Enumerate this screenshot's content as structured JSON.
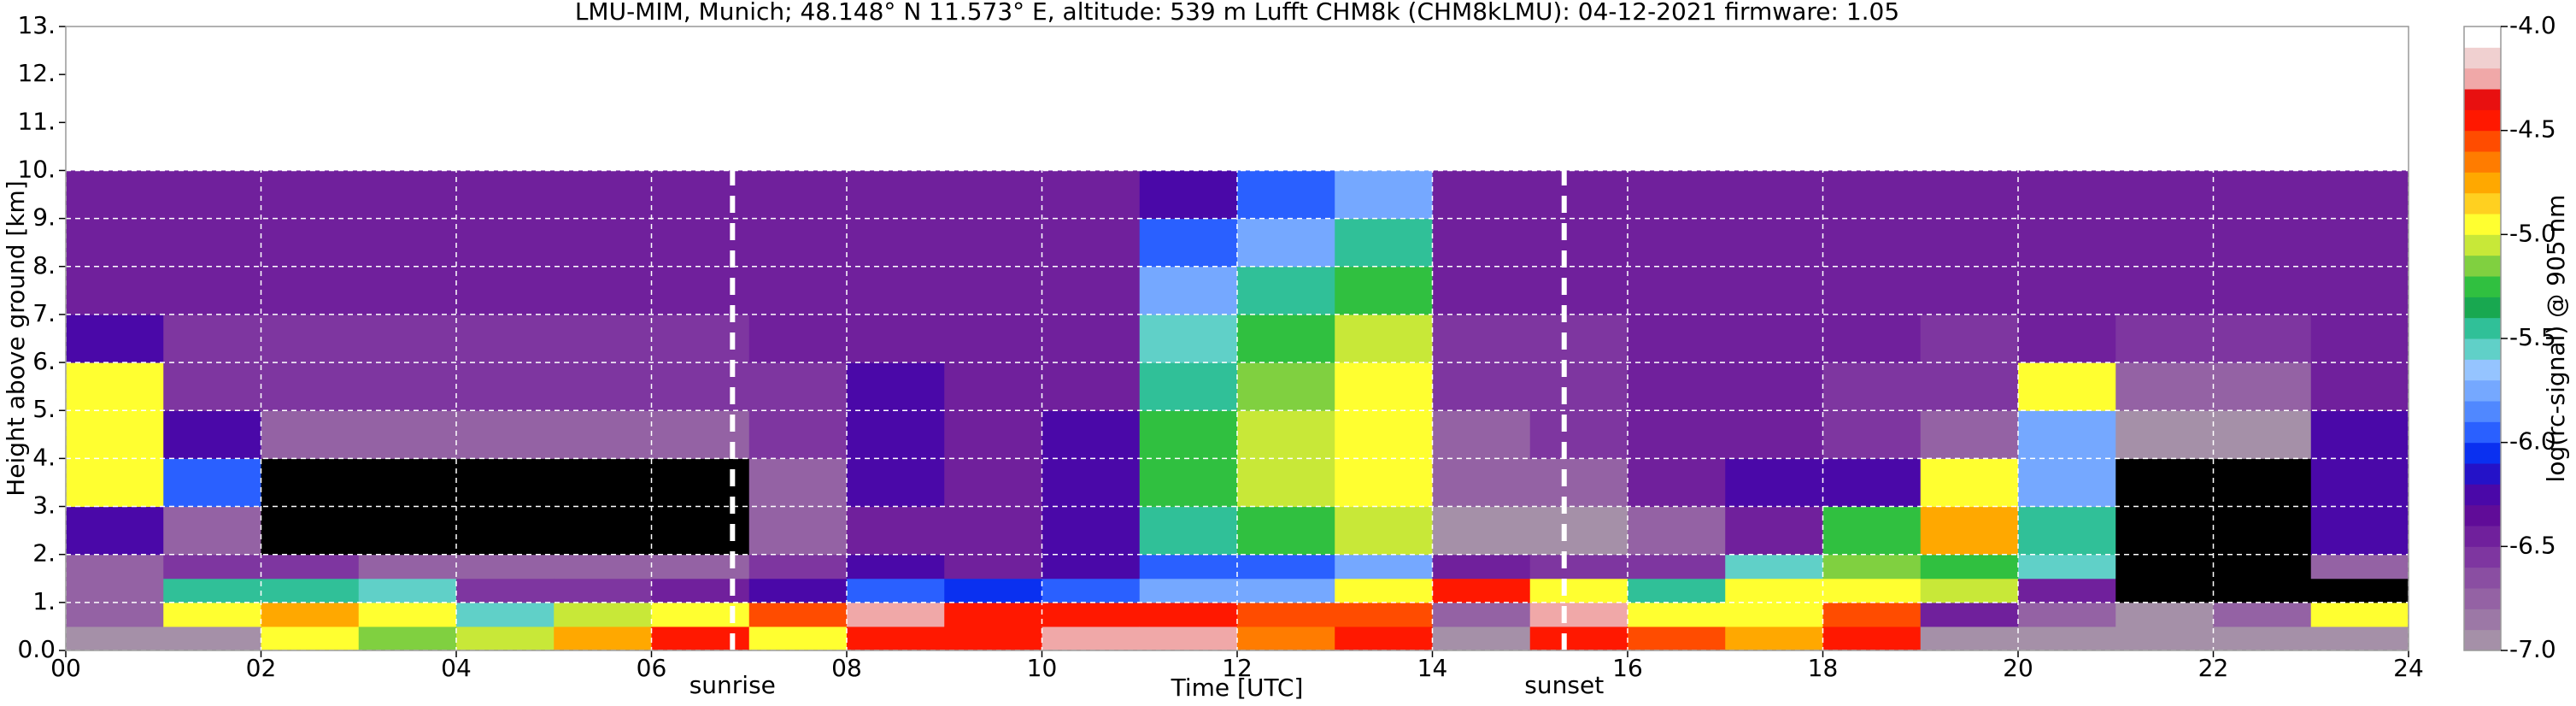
{
  "chart_data": {
    "type": "heatmap",
    "title": "LMU-MIM, Munich; 48.148° N 11.573° E, altitude: 539 m    Lufft CHM8k (CHM8kLMU): 04-12-2021    firmware: 1.05",
    "xlabel": "Time [UTC]",
    "ylabel": "Height above ground [km]",
    "xlim": [
      0,
      24
    ],
    "ylim": [
      0,
      13
    ],
    "xticks": [
      {
        "value": 0,
        "label": "00"
      },
      {
        "value": 2,
        "label": "02"
      },
      {
        "value": 4,
        "label": "04"
      },
      {
        "value": 6,
        "label": "06"
      },
      {
        "value": 8,
        "label": "08"
      },
      10,
      12,
      14,
      16,
      18,
      20,
      22,
      24
    ],
    "yticks": [
      {
        "value": 0,
        "label": "0.0"
      },
      {
        "value": 1,
        "label": "1."
      },
      {
        "value": 2,
        "label": "2."
      },
      {
        "value": 3,
        "label": "3."
      },
      {
        "value": 4,
        "label": "4."
      },
      {
        "value": 5,
        "label": "5."
      },
      {
        "value": 6,
        "label": "6."
      },
      {
        "value": 7,
        "label": "7."
      },
      {
        "value": 8,
        "label": "8."
      },
      {
        "value": 9,
        "label": "9."
      },
      {
        "value": 10,
        "label": "10."
      },
      {
        "value": 11,
        "label": "11."
      },
      {
        "value": 12,
        "label": "12."
      },
      {
        "value": 13,
        "label": "13."
      }
    ],
    "grid": true,
    "annotations": [
      {
        "text": "sunrise",
        "x": 6.83
      },
      {
        "text": "sunset",
        "x": 15.35
      }
    ],
    "x_edges": [
      0,
      1,
      2,
      3,
      4,
      5,
      6,
      7,
      8,
      9,
      10,
      11,
      12,
      13,
      14,
      15,
      16,
      17,
      18,
      19,
      20,
      21,
      22,
      23,
      24
    ],
    "y_edges": [
      0,
      0.5,
      1,
      1.5,
      2,
      3,
      4,
      5,
      6,
      7,
      8,
      9,
      10
    ],
    "z": [
      [
        -6.9,
        -6.8,
        -6.7,
        -6.7,
        -6.2,
        -5.0,
        -5.0,
        -4.9,
        -6.3,
        -6.5,
        -6.5,
        -6.5
      ],
      [
        -6.9,
        -5.0,
        -5.5,
        -6.6,
        -6.8,
        -6.0,
        -6.3,
        -6.6,
        -6.6,
        -6.5,
        -6.5,
        -6.5
      ],
      [
        -5.0,
        -4.8,
        -5.5,
        -6.6,
        -7.2,
        -7.2,
        -6.7,
        -6.6,
        -6.6,
        -6.5,
        -6.5,
        -6.5
      ],
      [
        -5.2,
        -5.0,
        -5.6,
        -6.7,
        -7.2,
        -7.2,
        -6.7,
        -6.6,
        -6.6,
        -6.5,
        -6.5,
        -6.5
      ],
      [
        -5.1,
        -5.6,
        -6.6,
        -6.8,
        -7.2,
        -7.2,
        -6.7,
        -6.6,
        -6.6,
        -6.5,
        -6.5,
        -6.5
      ],
      [
        -4.8,
        -5.1,
        -6.6,
        -6.8,
        -7.2,
        -7.2,
        -6.7,
        -6.6,
        -6.6,
        -6.5,
        -6.5,
        -6.5
      ],
      [
        -4.5,
        -5.0,
        -6.4,
        -6.7,
        -7.1,
        -7.2,
        -6.7,
        -6.6,
        -6.6,
        -6.5,
        -6.5,
        -6.5
      ],
      [
        -4.9,
        -4.6,
        -6.2,
        -6.6,
        -6.8,
        -6.7,
        -6.6,
        -6.6,
        -6.5,
        -6.5,
        -6.5,
        -6.5
      ],
      [
        -4.5,
        -4.3,
        -5.9,
        -6.3,
        -6.4,
        -6.3,
        -6.3,
        -6.3,
        -6.4,
        -6.4,
        -6.4,
        -6.4
      ],
      [
        -4.4,
        -4.4,
        -6.1,
        -6.4,
        -6.5,
        -6.5,
        -6.5,
        -6.5,
        -6.5,
        -6.5,
        -6.5,
        -6.5
      ],
      [
        -4.3,
        -4.5,
        -6.0,
        -6.2,
        -6.2,
        -6.2,
        -6.3,
        -6.4,
        -6.4,
        -6.4,
        -6.5,
        -6.5
      ],
      [
        -4.3,
        -4.4,
        -5.8,
        -5.9,
        -5.4,
        -5.3,
        -5.3,
        -5.4,
        -5.6,
        -5.8,
        -6.0,
        -6.2
      ],
      [
        -4.7,
        -4.6,
        -5.8,
        -6.0,
        -5.3,
        -5.1,
        -5.1,
        -5.2,
        -5.3,
        -5.5,
        -5.7,
        -6.0
      ],
      [
        -4.5,
        -4.6,
        -5.0,
        -5.8,
        -5.1,
        -5.0,
        -5.0,
        -5.0,
        -5.1,
        -5.3,
        -5.5,
        -5.8
      ],
      [
        -6.9,
        -6.8,
        -4.5,
        -6.5,
        -6.9,
        -6.8,
        -6.7,
        -6.6,
        -6.6,
        -6.5,
        -6.5,
        -6.5
      ],
      [
        -4.4,
        -4.3,
        -5.0,
        -6.6,
        -6.9,
        -6.8,
        -6.6,
        -6.6,
        -6.6,
        -6.5,
        -6.5,
        -6.5
      ],
      [
        -4.6,
        -4.9,
        -5.4,
        -6.6,
        -6.7,
        -6.4,
        -6.4,
        -6.5,
        -6.5,
        -6.5,
        -6.5,
        -6.5
      ],
      [
        -4.8,
        -5.0,
        -5.0,
        -5.6,
        -6.4,
        -6.3,
        -6.4,
        -6.5,
        -6.5,
        -6.5,
        -6.5,
        -6.5
      ],
      [
        -4.4,
        -4.6,
        -5.0,
        -5.2,
        -5.3,
        -6.2,
        -6.6,
        -6.6,
        -6.5,
        -6.5,
        -6.5,
        -6.5
      ],
      [
        -6.9,
        -6.5,
        -5.1,
        -5.3,
        -4.8,
        -5.0,
        -6.7,
        -6.6,
        -6.6,
        -6.5,
        -6.5,
        -6.5
      ],
      [
        -6.9,
        -6.8,
        -6.5,
        -5.6,
        -5.4,
        -5.7,
        -5.7,
        -5.0,
        -6.4,
        -6.5,
        -6.5,
        -6.5
      ],
      [
        -6.9,
        -6.9,
        -7.2,
        -7.2,
        -7.2,
        -7.2,
        -6.9,
        -6.7,
        -6.6,
        -6.5,
        -6.5,
        -6.5
      ],
      [
        -6.9,
        -6.7,
        -7.2,
        -7.2,
        -7.2,
        -7.2,
        -6.9,
        -6.7,
        -6.6,
        -6.5,
        -6.5,
        -6.5
      ],
      [
        -6.9,
        -5.0,
        -7.2,
        -6.8,
        -6.2,
        -6.2,
        -6.3,
        -6.4,
        -6.4,
        -6.4,
        -6.4,
        -6.4
      ]
    ],
    "colorbar": {
      "label": "log(rc-signal) @ 905 nm",
      "clim": [
        -7,
        -4
      ],
      "ticks": [
        {
          "value": -4,
          "label": "-4.0"
        },
        -4.5,
        {
          "value": -5,
          "label": "-5.0"
        },
        -5.5,
        {
          "value": -6,
          "label": "-6.0"
        },
        -6.5,
        {
          "value": -7,
          "label": "-7.0"
        }
      ],
      "under_color": "#000000",
      "colors": [
        "#a590a8",
        "#9c78a6",
        "#9462a4",
        "#8a4ea2",
        "#7e36a0",
        "#70209c",
        "#600c98",
        "#4a08a8",
        "#2412c8",
        "#0a30f0",
        "#2a60ff",
        "#5088ff",
        "#75a8ff",
        "#95c4ff",
        "#60d0c8",
        "#30c098",
        "#18a850",
        "#30c040",
        "#80d040",
        "#c8e838",
        "#ffff30",
        "#ffd020",
        "#ffa800",
        "#ff7c00",
        "#ff4c00",
        "#ff1800",
        "#e81010",
        "#f0a8a8",
        "#f0d0d0",
        "#ffffff"
      ]
    }
  }
}
